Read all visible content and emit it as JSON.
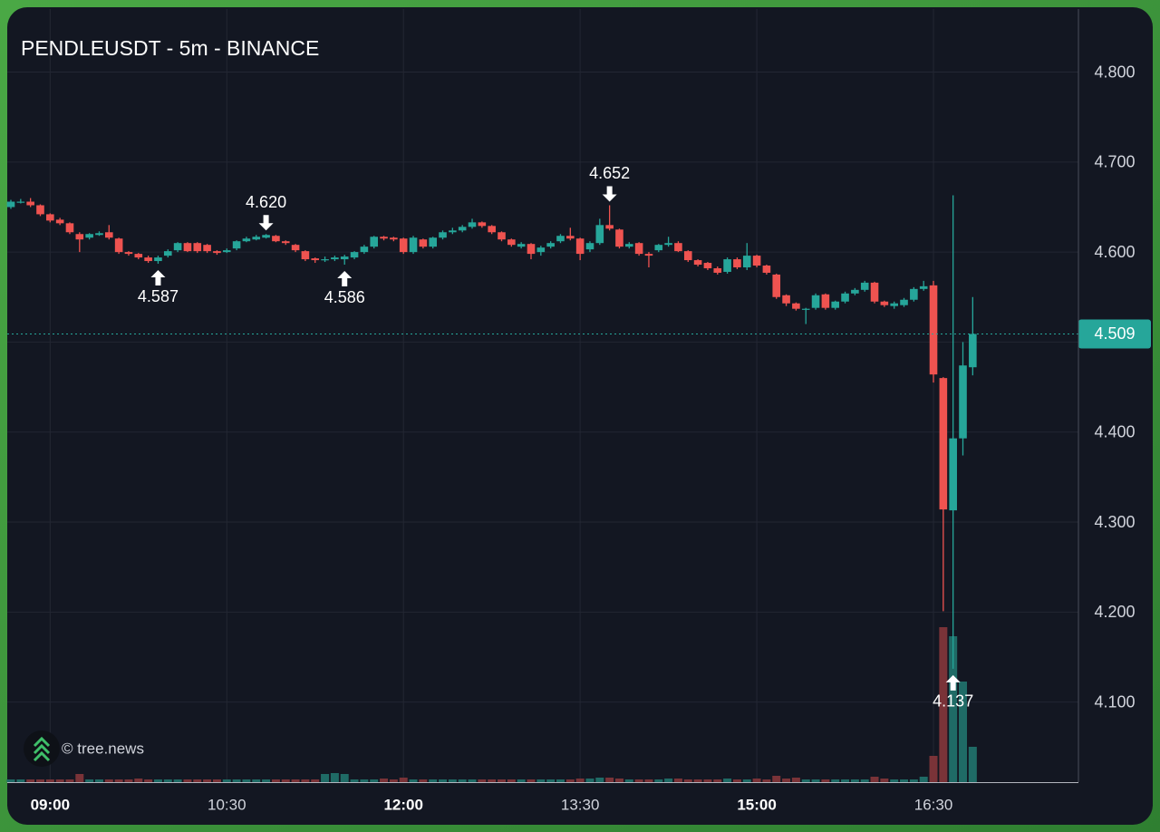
{
  "chart_data": {
    "type": "candlestick",
    "title": "PENDLEUSDT - 5m - BINANCE",
    "x": [
      "08:40",
      "08:45",
      "08:50",
      "08:55",
      "09:00",
      "09:05",
      "09:10",
      "09:15",
      "09:20",
      "09:25",
      "09:30",
      "09:35",
      "09:40",
      "09:45",
      "09:50",
      "09:55",
      "10:00",
      "10:05",
      "10:10",
      "10:15",
      "10:20",
      "10:25",
      "10:30",
      "10:35",
      "10:40",
      "10:45",
      "10:50",
      "10:55",
      "11:00",
      "11:05",
      "11:10",
      "11:15",
      "11:20",
      "11:25",
      "11:30",
      "11:35",
      "11:40",
      "11:45",
      "11:50",
      "11:55",
      "12:00",
      "12:05",
      "12:10",
      "12:15",
      "12:20",
      "12:25",
      "12:30",
      "12:35",
      "12:40",
      "12:45",
      "12:50",
      "12:55",
      "13:00",
      "13:05",
      "13:10",
      "13:15",
      "13:20",
      "13:25",
      "13:30",
      "13:35",
      "13:40",
      "13:45",
      "13:50",
      "13:55",
      "14:00",
      "14:05",
      "14:10",
      "14:15",
      "14:20",
      "14:25",
      "14:30",
      "14:35",
      "14:40",
      "14:45",
      "14:50",
      "14:55",
      "15:00",
      "15:05",
      "15:10",
      "15:15",
      "15:20",
      "15:25",
      "15:30",
      "15:35",
      "15:40",
      "15:45",
      "15:50",
      "15:55",
      "16:00",
      "16:05",
      "16:10",
      "16:15",
      "16:20",
      "16:25",
      "16:30",
      "16:35",
      "16:40",
      "16:45",
      "16:50"
    ],
    "open": [
      4.65,
      4.656,
      4.656,
      4.652,
      4.642,
      4.636,
      4.632,
      4.62,
      4.616,
      4.619,
      4.622,
      4.615,
      4.6,
      4.598,
      4.594,
      4.59,
      4.596,
      4.602,
      4.61,
      4.61,
      4.608,
      4.601,
      4.6,
      4.604,
      4.612,
      4.614,
      4.616,
      4.618,
      4.612,
      4.608,
      4.601,
      4.593,
      4.591,
      4.592,
      4.592,
      4.594,
      4.6,
      4.606,
      4.617,
      4.616,
      4.615,
      4.6,
      4.614,
      4.606,
      4.616,
      4.622,
      4.624,
      4.628,
      4.633,
      4.629,
      4.622,
      4.614,
      4.606,
      4.609,
      4.6,
      4.606,
      4.612,
      4.618,
      4.615,
      4.603,
      4.61,
      4.63,
      4.625,
      4.606,
      4.61,
      4.598,
      4.602,
      4.608,
      4.61,
      4.601,
      4.591,
      4.588,
      4.582,
      4.578,
      4.592,
      4.583,
      4.596,
      4.585,
      4.575,
      4.552,
      4.543,
      4.536,
      4.538,
      4.553,
      4.538,
      4.545,
      4.554,
      4.558,
      4.566,
      4.545,
      4.54,
      4.541,
      4.547,
      4.559,
      4.563,
      4.46,
      4.313,
      4.393,
      4.472
    ],
    "high": [
      4.658,
      4.659,
      4.66,
      4.653,
      4.643,
      4.638,
      4.633,
      4.622,
      4.621,
      4.623,
      4.63,
      4.616,
      4.601,
      4.599,
      4.596,
      4.596,
      4.603,
      4.611,
      4.611,
      4.611,
      4.609,
      4.602,
      4.604,
      4.613,
      4.617,
      4.619,
      4.62,
      4.619,
      4.613,
      4.609,
      4.602,
      4.594,
      4.595,
      4.596,
      4.597,
      4.601,
      4.608,
      4.618,
      4.618,
      4.617,
      4.616,
      4.618,
      4.615,
      4.617,
      4.624,
      4.627,
      4.63,
      4.637,
      4.634,
      4.63,
      4.623,
      4.615,
      4.611,
      4.61,
      4.607,
      4.612,
      4.62,
      4.627,
      4.616,
      4.612,
      4.637,
      4.652,
      4.626,
      4.611,
      4.611,
      4.6,
      4.609,
      4.617,
      4.612,
      4.602,
      4.592,
      4.589,
      4.584,
      4.594,
      4.594,
      4.61,
      4.597,
      4.586,
      4.576,
      4.553,
      4.544,
      4.538,
      4.554,
      4.554,
      4.546,
      4.556,
      4.56,
      4.568,
      4.567,
      4.546,
      4.545,
      4.549,
      4.561,
      4.568,
      4.568,
      4.461,
      4.663,
      4.5,
      4.55
    ],
    "low": [
      4.648,
      4.654,
      4.65,
      4.64,
      4.633,
      4.63,
      4.62,
      4.6,
      4.614,
      4.618,
      4.614,
      4.598,
      4.596,
      4.592,
      4.588,
      4.587,
      4.594,
      4.6,
      4.6,
      4.599,
      4.599,
      4.597,
      4.599,
      4.602,
      4.611,
      4.613,
      4.615,
      4.611,
      4.608,
      4.6,
      4.59,
      4.588,
      4.589,
      4.59,
      4.586,
      4.592,
      4.598,
      4.604,
      4.613,
      4.612,
      4.598,
      4.598,
      4.604,
      4.604,
      4.614,
      4.62,
      4.622,
      4.626,
      4.627,
      4.62,
      4.612,
      4.606,
      4.604,
      4.592,
      4.596,
      4.604,
      4.61,
      4.613,
      4.591,
      4.6,
      4.608,
      4.624,
      4.604,
      4.604,
      4.596,
      4.583,
      4.6,
      4.606,
      4.6,
      4.589,
      4.584,
      4.58,
      4.575,
      4.576,
      4.581,
      4.58,
      4.583,
      4.575,
      4.548,
      4.54,
      4.535,
      4.52,
      4.536,
      4.536,
      4.536,
      4.543,
      4.552,
      4.556,
      4.543,
      4.539,
      4.537,
      4.539,
      4.545,
      4.557,
      4.455,
      4.201,
      4.137,
      4.374,
      4.463
    ],
    "close": [
      4.656,
      4.656,
      4.652,
      4.642,
      4.635,
      4.632,
      4.622,
      4.614,
      4.62,
      4.621,
      4.616,
      4.6,
      4.598,
      4.594,
      4.59,
      4.594,
      4.601,
      4.61,
      4.601,
      4.601,
      4.601,
      4.599,
      4.602,
      4.612,
      4.615,
      4.617,
      4.619,
      4.612,
      4.61,
      4.602,
      4.592,
      4.591,
      4.592,
      4.594,
      4.595,
      4.6,
      4.606,
      4.617,
      4.615,
      4.614,
      4.6,
      4.616,
      4.606,
      4.616,
      4.622,
      4.624,
      4.628,
      4.633,
      4.629,
      4.622,
      4.614,
      4.608,
      4.609,
      4.598,
      4.605,
      4.61,
      4.618,
      4.615,
      4.598,
      4.61,
      4.63,
      4.626,
      4.606,
      4.609,
      4.598,
      4.596,
      4.608,
      4.61,
      4.601,
      4.591,
      4.586,
      4.582,
      4.577,
      4.592,
      4.583,
      4.596,
      4.585,
      4.577,
      4.55,
      4.543,
      4.537,
      4.537,
      4.552,
      4.538,
      4.545,
      4.554,
      4.558,
      4.566,
      4.545,
      4.541,
      4.543,
      4.547,
      4.559,
      4.562,
      4.464,
      4.314,
      4.393,
      4.474,
      4.509
    ],
    "volume": [
      3,
      3,
      3,
      3,
      3,
      3,
      3,
      9,
      3,
      3,
      3,
      3,
      3,
      4,
      3,
      3,
      3,
      3,
      3,
      3,
      3,
      3,
      3,
      3,
      3,
      3,
      3,
      3,
      3,
      3,
      3,
      3,
      9,
      10,
      9,
      3,
      3,
      3,
      4,
      3,
      5,
      3,
      3,
      3,
      3,
      3,
      3,
      3,
      3,
      3,
      3,
      3,
      3,
      3,
      3,
      3,
      3,
      3,
      4,
      4,
      5,
      5,
      4,
      3,
      3,
      3,
      3,
      4,
      4,
      3,
      3,
      3,
      3,
      4,
      3,
      3,
      4,
      3,
      7,
      4,
      5,
      3,
      3,
      3,
      3,
      3,
      3,
      3,
      6,
      4,
      3,
      3,
      3,
      6,
      29,
      171,
      161,
      111,
      39
    ],
    "vlim": [
      0,
      400
    ],
    "up_color": "#26a69a",
    "down_color": "#ef5350",
    "volume_up_color": "#1f6b66",
    "volume_down_color": "#7a3338",
    "ylim": [
      4.011,
      4.87
    ],
    "yticks": [
      {
        "value": 4.1,
        "label": "4.100"
      },
      {
        "value": 4.2,
        "label": "4.200"
      },
      {
        "value": 4.3,
        "label": "4.300"
      },
      {
        "value": 4.4,
        "label": "4.400"
      },
      {
        "value": 4.5,
        "label": "4.500"
      },
      {
        "value": 4.6,
        "label": "4.600"
      },
      {
        "value": 4.7,
        "label": "4.700"
      },
      {
        "value": 4.8,
        "label": "4.800"
      }
    ],
    "xticks": [
      "09:00",
      "10:30",
      "12:00",
      "13:30",
      "15:00",
      "16:30"
    ],
    "bold_xticks": [
      0,
      2,
      4
    ],
    "grid": true,
    "last_price": {
      "value": 4.509,
      "label": "4.509"
    },
    "annotations": [
      {
        "x": "09:55",
        "value": 4.587,
        "label": "4.587",
        "kind": "low"
      },
      {
        "x": "10:50",
        "value": 4.62,
        "label": "4.620",
        "kind": "high"
      },
      {
        "x": "11:30",
        "value": 4.586,
        "label": "4.586",
        "kind": "low"
      },
      {
        "x": "13:45",
        "value": 4.652,
        "label": "4.652",
        "kind": "high"
      },
      {
        "x": "16:40",
        "value": 4.137,
        "label": "4.137",
        "kind": "low"
      }
    ],
    "watermark": "© tree.news"
  }
}
